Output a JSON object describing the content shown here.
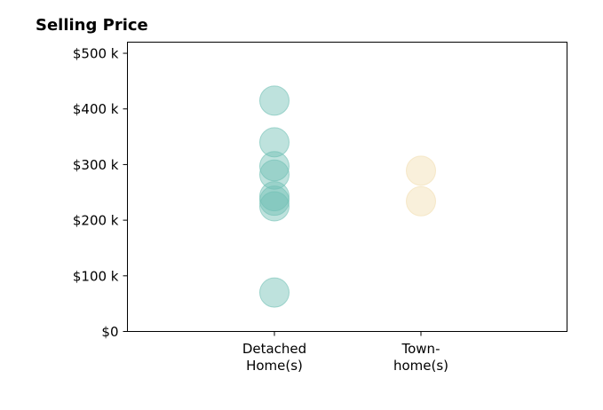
{
  "chart_data": {
    "type": "scatter",
    "title": "Selling Price",
    "xlabel": "",
    "ylabel": "",
    "categories": [
      [
        "Detached",
        "Home(s)"
      ],
      [
        "Town-",
        "home(s)"
      ]
    ],
    "ylim": [
      0,
      520000
    ],
    "yticks": [
      {
        "value": 0,
        "label": "$0"
      },
      {
        "value": 100000,
        "label": "$100 k"
      },
      {
        "value": 200000,
        "label": "$200 k"
      },
      {
        "value": 300000,
        "label": "$300 k"
      },
      {
        "value": 400000,
        "label": "$400 k"
      },
      {
        "value": 500000,
        "label": "$500 k"
      }
    ],
    "series": [
      {
        "category_index": 0,
        "color": "#6fbfb4",
        "values": [
          415000,
          340000,
          297000,
          282000,
          243000,
          235000,
          225000,
          70000
        ]
      },
      {
        "category_index": 1,
        "color": "#f2deb0",
        "values": [
          289000,
          234000
        ]
      }
    ],
    "legend": "none",
    "grid": false
  }
}
